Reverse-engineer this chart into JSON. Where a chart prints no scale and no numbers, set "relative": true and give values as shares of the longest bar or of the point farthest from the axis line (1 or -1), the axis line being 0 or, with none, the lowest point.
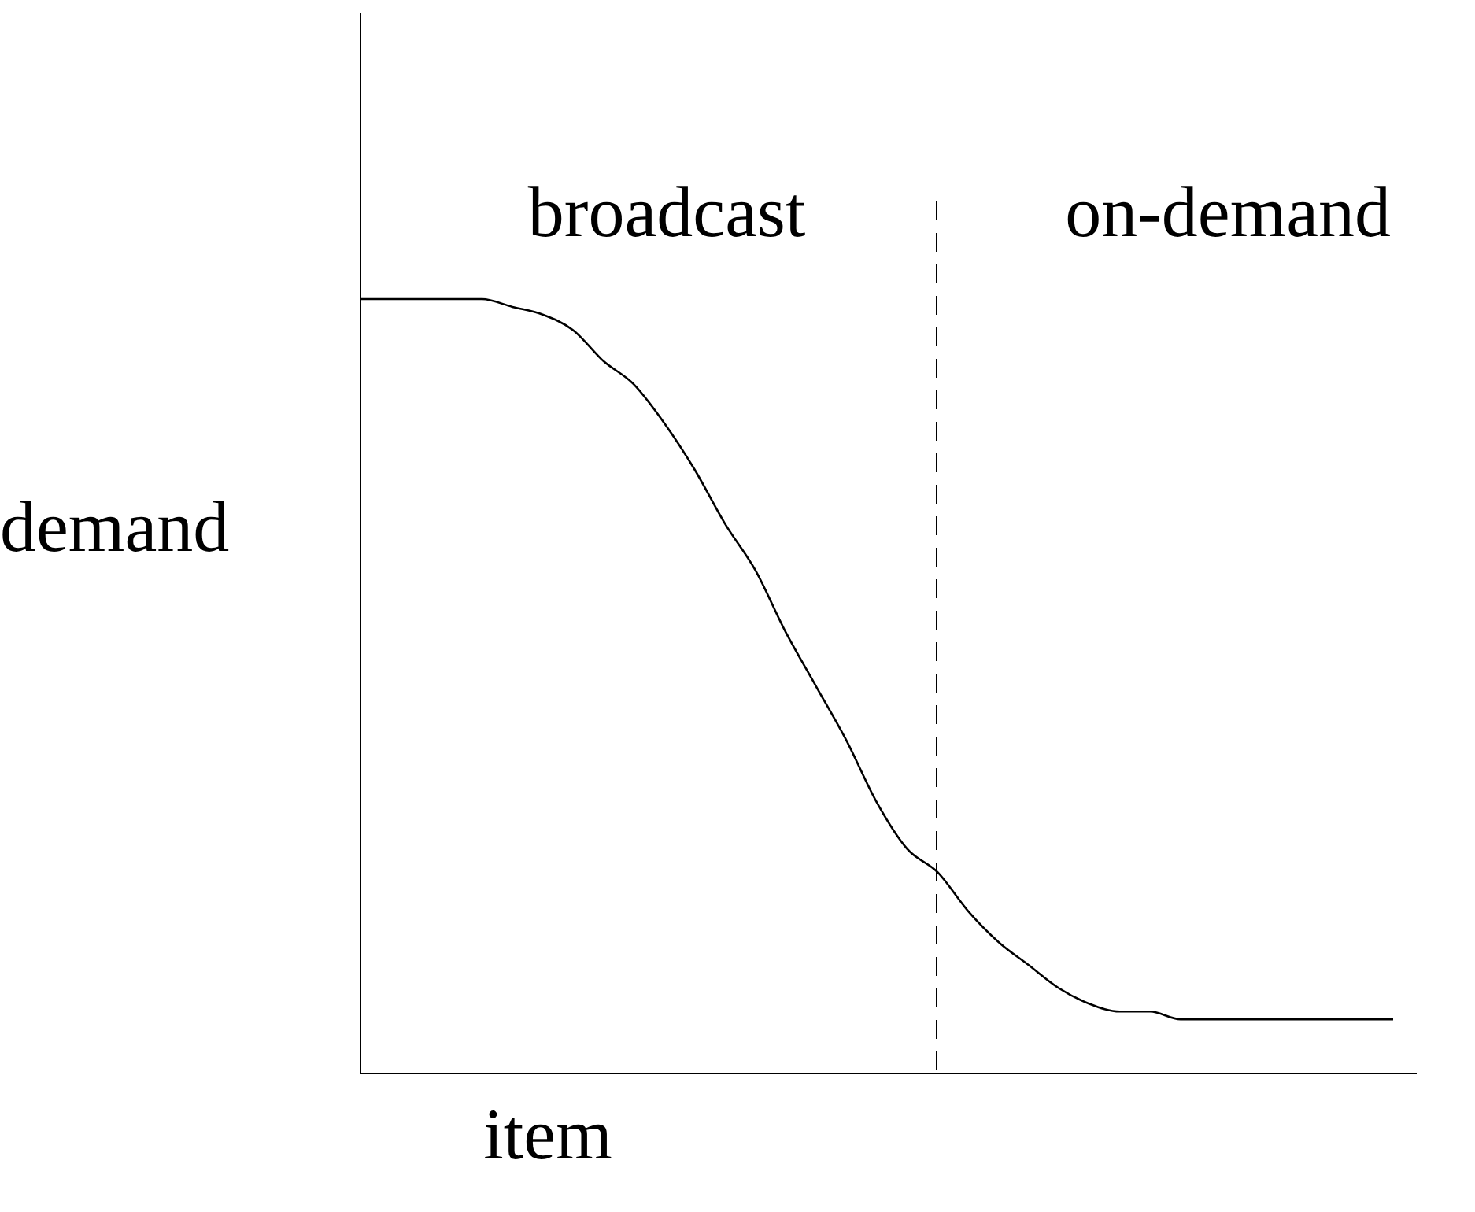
{
  "chart_data": {
    "type": "line",
    "relative": true,
    "xlabel": "item",
    "ylabel": "demand",
    "categories": [
      null,
      null,
      null,
      null,
      null,
      null,
      null,
      null,
      null,
      null,
      null,
      null,
      null,
      null,
      null,
      null,
      null,
      null,
      null,
      null,
      null,
      null,
      null,
      null,
      null,
      null,
      null,
      null,
      null,
      null,
      null,
      null,
      null,
      null,
      null
    ],
    "series": [
      {
        "color": "#000000",
        "values": [
          1.0,
          1.0,
          1.0,
          1.0,
          1.0,
          0.99,
          0.98,
          0.96,
          0.92,
          0.89,
          0.84,
          0.78,
          0.71,
          0.65,
          0.57,
          0.5,
          0.43,
          0.35,
          0.29,
          0.26,
          0.21,
          0.17,
          0.14,
          0.11,
          0.09,
          0.08,
          0.08,
          0.07,
          0.07,
          0.07,
          0.07,
          0.07,
          0.07,
          0.07,
          0.07
        ]
      }
    ],
    "annotations": [
      "broadcast",
      "on-demand"
    ],
    "grid": false,
    "legend": false
  }
}
